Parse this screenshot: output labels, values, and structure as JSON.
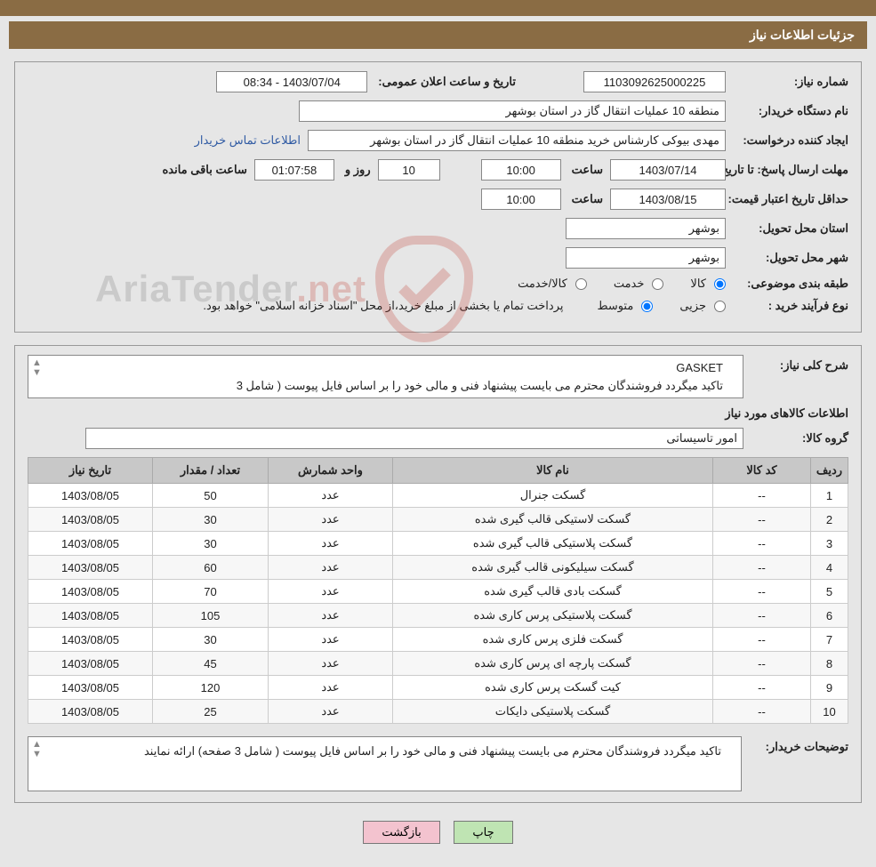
{
  "colors": {
    "header_bg": "#8a6c44",
    "page_bg": "#e6e6e6",
    "box_border": "#888888",
    "link": "#2f5aa3",
    "th_bg": "#c8c8c8",
    "btn_print": "#bfe4b3",
    "btn_back": "#f3c3cf",
    "wm_red": "#c23b2f",
    "wm_grey": "#7a7a7a"
  },
  "header_title": "جزئیات اطلاعات نیاز",
  "labels": {
    "need_no": "شماره نیاز:",
    "announce": "تاریخ و ساعت اعلان عمومی:",
    "buyer_org": "نام دستگاه خریدار:",
    "requester": "ایجاد کننده درخواست:",
    "deadline": "مهلت ارسال پاسخ: تا تاریخ:",
    "time": "ساعت",
    "days_and": "روز و",
    "remaining": "ساعت باقی مانده",
    "price_valid": "حداقل تاریخ اعتبار قیمت: تا تاریخ:",
    "deliv_province": "استان محل تحویل:",
    "deliv_city": "شهر محل تحویل:",
    "category": "طبقه بندی موضوعی:",
    "cat_goods": "کالا",
    "cat_service": "خدمت",
    "cat_both": "کالا/خدمت",
    "purchase_type": "نوع فرآیند خرید :",
    "pt_partial": "جزیی",
    "pt_medium": "متوسط",
    "pt_note": "پرداخت تمام یا بخشی از مبلغ خرید،از محل \"اسناد خزانه اسلامی\" خواهد بود.",
    "general_desc": "شرح کلی نیاز:",
    "items_info": "اطلاعات کالاهای مورد نیاز",
    "group": "گروه کالا:",
    "buyer_notes": "توضیحات خریدار:"
  },
  "values": {
    "need_no": "1103092625000225",
    "announce_dt": "1403/07/04 - 08:34",
    "buyer_org": "منطقه 10 عملیات انتقال گاز در استان بوشهر",
    "requester": "مهدی بیوکی کارشناس خرید منطقه 10 عملیات انتقال گاز در استان بوشهر",
    "contact_link": "اطلاعات تماس خریدار",
    "deadline_date": "1403/07/14",
    "deadline_time": "10:00",
    "days_left": "10",
    "time_left": "01:07:58",
    "price_valid_date": "1403/08/15",
    "price_valid_time": "10:00",
    "province": "بوشهر",
    "city": "بوشهر",
    "desc_line1": "GASKET",
    "desc_line2": "تاکید میگردد فروشندگان محترم می بایست پیشنهاد فنی و مالی خود را بر اساس فایل پیوست ( شامل 3",
    "group": "امور تاسیساتی",
    "buyer_notes_text": "تاکید میگردد فروشندگان محترم می بایست پیشنهاد فنی و مالی خود را بر اساس فایل پیوست ( شامل 3 صفحه) ارائه نمایند"
  },
  "radio_state": {
    "goods": true,
    "service": false,
    "both": false,
    "partial": false,
    "medium": true
  },
  "table": {
    "headers": {
      "row": "ردیف",
      "code": "کد کالا",
      "name": "نام کالا",
      "unit": "واحد شمارش",
      "qty": "تعداد / مقدار",
      "date": "تاریخ نیاز"
    },
    "rows": [
      {
        "row": "1",
        "code": "--",
        "name": "گسکت جنرال",
        "unit": "عدد",
        "qty": "50",
        "date": "1403/08/05"
      },
      {
        "row": "2",
        "code": "--",
        "name": "گسکت لاستیکی قالب گیری شده",
        "unit": "عدد",
        "qty": "30",
        "date": "1403/08/05"
      },
      {
        "row": "3",
        "code": "--",
        "name": "گسکت پلاستیکی قالب گیری شده",
        "unit": "عدد",
        "qty": "30",
        "date": "1403/08/05"
      },
      {
        "row": "4",
        "code": "--",
        "name": "گسکت سیلیکونی قالب گیری شده",
        "unit": "عدد",
        "qty": "60",
        "date": "1403/08/05"
      },
      {
        "row": "5",
        "code": "--",
        "name": "گسکت بادی قالب گیری شده",
        "unit": "عدد",
        "qty": "70",
        "date": "1403/08/05"
      },
      {
        "row": "6",
        "code": "--",
        "name": "گسکت پلاستیکی پرس کاری شده",
        "unit": "عدد",
        "qty": "105",
        "date": "1403/08/05"
      },
      {
        "row": "7",
        "code": "--",
        "name": "گسکت فلزی پرس کاری شده",
        "unit": "عدد",
        "qty": "30",
        "date": "1403/08/05"
      },
      {
        "row": "8",
        "code": "--",
        "name": "گسکت پارچه ای پرس کاری شده",
        "unit": "عدد",
        "qty": "45",
        "date": "1403/08/05"
      },
      {
        "row": "9",
        "code": "--",
        "name": "کیت گسکت پرس کاری شده",
        "unit": "عدد",
        "qty": "120",
        "date": "1403/08/05"
      },
      {
        "row": "10",
        "code": "--",
        "name": "گسکت پلاستیکی دایکات",
        "unit": "عدد",
        "qty": "25",
        "date": "1403/08/05"
      }
    ]
  },
  "buttons": {
    "print": "چاپ",
    "back": "بازگشت"
  },
  "watermark": {
    "part1": "AriaTender",
    "part2": ".net"
  }
}
